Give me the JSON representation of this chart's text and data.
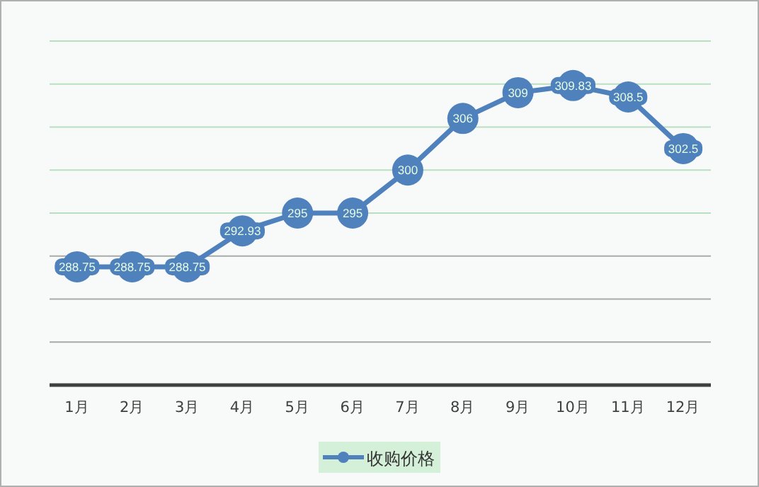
{
  "chart_data": {
    "type": "line",
    "categories": [
      "1月",
      "2月",
      "3月",
      "4月",
      "5月",
      "6月",
      "7月",
      "8月",
      "9月",
      "10月",
      "11月",
      "12月"
    ],
    "series": [
      {
        "name": "收购价格",
        "color": "#4f81bd",
        "values": [
          288.75,
          288.75,
          288.75,
          292.93,
          295,
          295,
          300,
          306,
          309,
          309.83,
          308.5,
          302.5
        ]
      }
    ],
    "ylim": [
      275,
      315
    ],
    "yticks": [
      {
        "value": 275,
        "label": null
      },
      {
        "value": 280,
        "label": null
      },
      {
        "value": 285,
        "label": null
      },
      {
        "value": 290,
        "label": null
      },
      {
        "value": 295,
        "label": null
      },
      {
        "value": 300,
        "label": null
      },
      {
        "value": 305,
        "label": null
      },
      {
        "value": 310,
        "label": null
      },
      {
        "value": 315,
        "label": null
      }
    ],
    "tick_labels": "x",
    "grid": "y",
    "legend": "bottom",
    "marker": "circle",
    "line_style": "solid",
    "data_labels": true
  }
}
